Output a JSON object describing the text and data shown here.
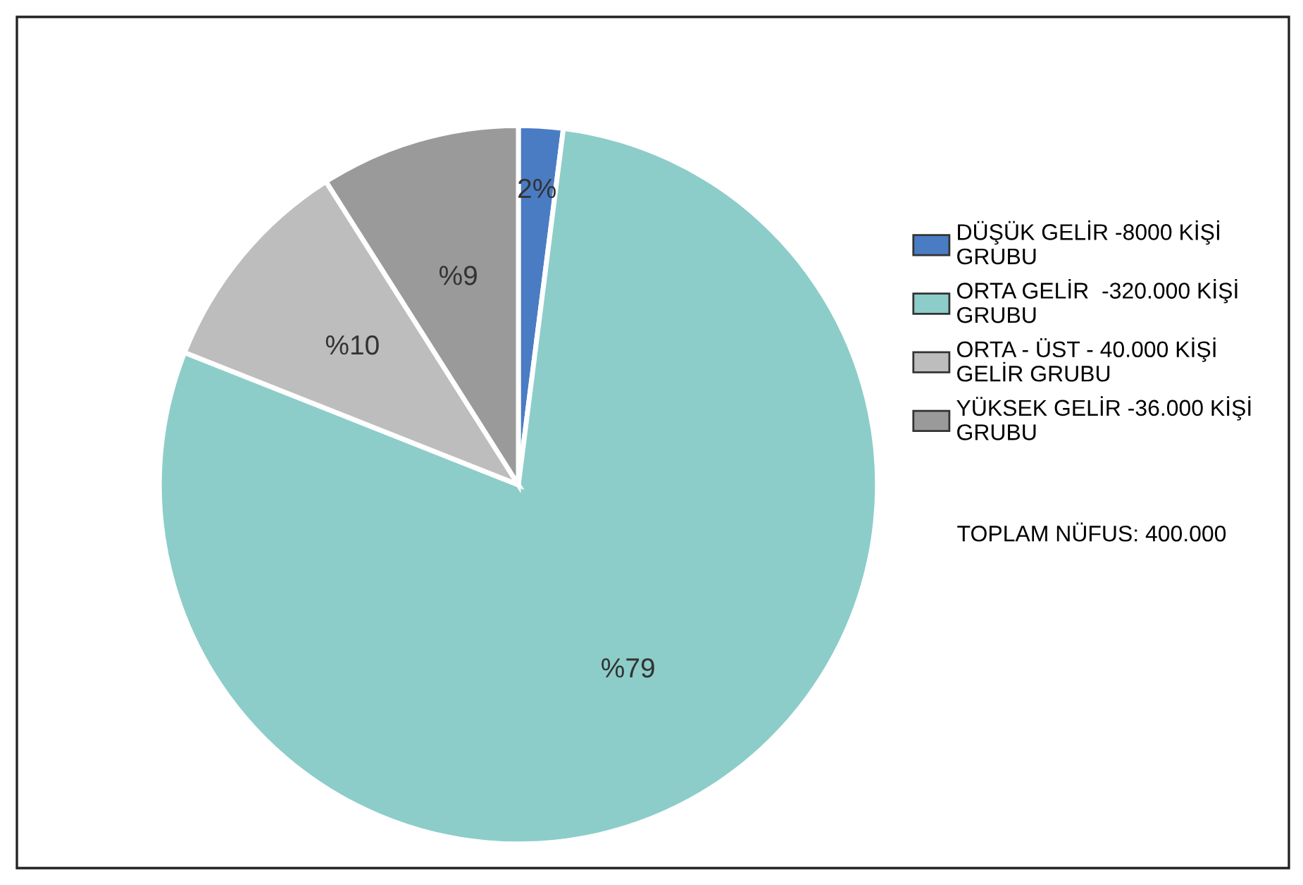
{
  "chart_data": {
    "type": "pie",
    "categories": [
      "DÜŞÜK GELİR -8000 KİŞİ\nGRUBU",
      "ORTA GELİR  -320.000 KİŞİ\nGRUBU",
      "ORTA - ÜST - 40.000 KİŞİ\nGELİR GRUBU",
      "YÜKSEK GELİR -36.000 KİŞİ\nGRUBU"
    ],
    "values": [
      2,
      79,
      10,
      9
    ],
    "colors": [
      "#4a7cc4",
      "#8ccdc9",
      "#bdbdbd",
      "#9a9a9a"
    ],
    "value_labels": [
      "2%",
      "%79",
      "%10",
      "%9"
    ],
    "legend": "right",
    "annotations": [
      "TOPLAM NÜFUS: 400.000"
    ]
  }
}
